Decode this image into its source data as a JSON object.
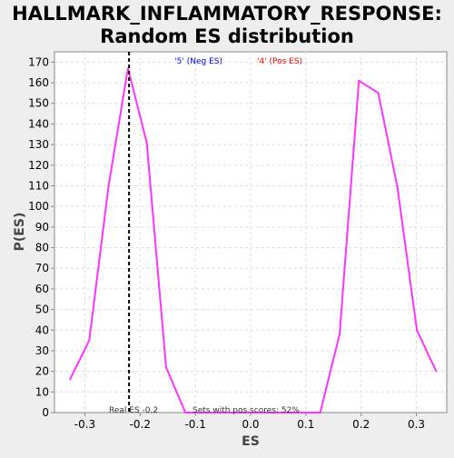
{
  "chart_data": {
    "type": "line",
    "title_line1": "HALLMARK_INFLAMMATORY_RESPONSE:",
    "title_line2": "Random ES distribution",
    "xlabel": "ES",
    "ylabel": "P(ES)",
    "xlim": [
      -0.355,
      0.355
    ],
    "ylim": [
      0,
      175
    ],
    "x_ticks": [
      -0.3,
      -0.2,
      -0.1,
      0.0,
      0.1,
      0.2,
      0.3
    ],
    "x_tick_labels": [
      "-0.3",
      "-0.2",
      "-0.1",
      "0.0",
      "0.1",
      "0.2",
      "0.3"
    ],
    "y_ticks": [
      0,
      10,
      20,
      30,
      40,
      50,
      60,
      70,
      80,
      90,
      100,
      110,
      120,
      130,
      140,
      150,
      160,
      170
    ],
    "grid": true,
    "legend": [
      {
        "label": "'5' (Neg ES)",
        "color": "#0000ff"
      },
      {
        "label": "'4' (Pos ES)",
        "color": "#ff0000"
      }
    ],
    "series": [
      {
        "color": "#ff33ff",
        "x": [
          -0.327,
          -0.292,
          -0.257,
          -0.222,
          -0.188,
          -0.153,
          -0.118,
          -0.083,
          -0.048,
          -0.013,
          0.022,
          0.056,
          0.091,
          0.126,
          0.161,
          0.196,
          0.231,
          0.266,
          0.301,
          0.336
        ],
        "y": [
          16,
          35,
          110,
          167,
          131,
          22,
          0,
          0,
          0,
          0,
          0,
          0,
          0,
          0,
          38,
          161,
          155,
          109,
          40,
          20
        ]
      }
    ],
    "real_es": -0.22,
    "annotations": {
      "real_es_label": "Real ES -0.2",
      "pos_scores": "Sets with pos scores: 52%"
    }
  }
}
